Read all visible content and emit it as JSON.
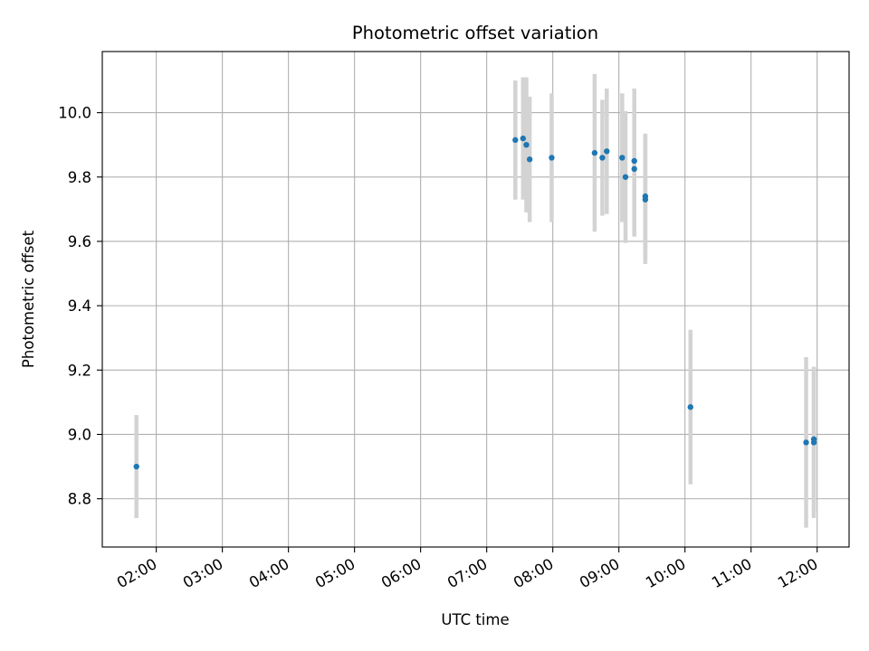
{
  "chart_data": {
    "type": "scatter",
    "title": "Photometric offset variation",
    "xlabel": "UTC time",
    "ylabel": "Photometric offset",
    "x_tick_labels": [
      "02:00",
      "03:00",
      "04:00",
      "05:00",
      "06:00",
      "07:00",
      "08:00",
      "09:00",
      "10:00",
      "11:00",
      "12:00"
    ],
    "y_tick_labels": [
      "8.8",
      "9.0",
      "9.2",
      "9.4",
      "9.6",
      "9.8",
      "10.0"
    ],
    "xlim": [
      "01:11",
      "12:29"
    ],
    "ylim": [
      8.65,
      10.19
    ],
    "grid": true,
    "colors": {
      "point": "#1f77b4",
      "errorbar": "#d3d3d3",
      "grid": "#b0b0b0"
    },
    "series": [
      {
        "points": [
          {
            "x": "01:42",
            "y": 8.9,
            "err": 0.16
          },
          {
            "x": "07:26",
            "y": 9.915,
            "err": 0.185
          },
          {
            "x": "07:33",
            "y": 9.92,
            "err": 0.19
          },
          {
            "x": "07:36",
            "y": 9.9,
            "err": 0.21
          },
          {
            "x": "07:39",
            "y": 9.855,
            "err": 0.195
          },
          {
            "x": "07:59",
            "y": 9.86,
            "err": 0.2
          },
          {
            "x": "08:38",
            "y": 9.875,
            "err": 0.245
          },
          {
            "x": "08:45",
            "y": 9.86,
            "err": 0.18
          },
          {
            "x": "08:49",
            "y": 9.88,
            "err": 0.195
          },
          {
            "x": "09:03",
            "y": 9.86,
            "err": 0.2
          },
          {
            "x": "09:06",
            "y": 9.8,
            "err": 0.205
          },
          {
            "x": "09:14",
            "y": 9.85,
            "err": 0.225
          },
          {
            "x": "09:14",
            "y": 9.825,
            "err": 0.21
          },
          {
            "x": "09:24",
            "y": 9.74,
            "err": 0.195
          },
          {
            "x": "09:24",
            "y": 9.73,
            "err": 0.2
          },
          {
            "x": "10:05",
            "y": 9.085,
            "err": 0.24
          },
          {
            "x": "11:50",
            "y": 8.975,
            "err": 0.265
          },
          {
            "x": "11:57",
            "y": 8.975,
            "err": 0.235
          },
          {
            "x": "11:57",
            "y": 8.985,
            "err": 0.225
          }
        ]
      }
    ]
  }
}
